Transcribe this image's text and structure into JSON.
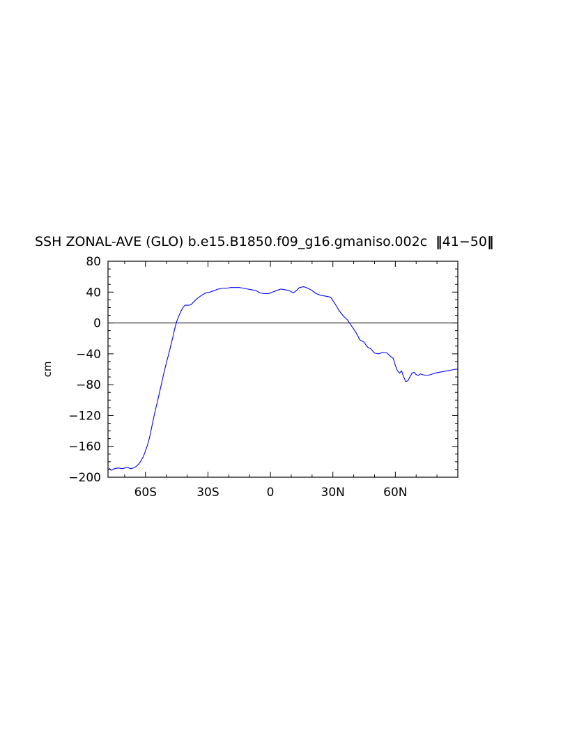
{
  "chart_data": {
    "type": "line",
    "title": "SSH ZONAL-AVE (GLO) b.e15.B1850.f09_g16.gmaniso.002c  41−50 ",
    "title_parts": {
      "main": "SSH ZONAL-AVE (GLO) b.e15.B1850.f09_g16.gmaniso.002c",
      "years": "41−50"
    },
    "xlabel": "",
    "ylabel": "cm",
    "xlim": [
      -78,
      90
    ],
    "ylim": [
      -200,
      80
    ],
    "x_ticks": [
      {
        "value": -60,
        "label": "60S"
      },
      {
        "value": -30,
        "label": "30S"
      },
      {
        "value": 0,
        "label": "0"
      },
      {
        "value": 30,
        "label": "30N"
      },
      {
        "value": 60,
        "label": "60N"
      }
    ],
    "y_ticks": [
      {
        "value": 80,
        "label": "80"
      },
      {
        "value": 40,
        "label": "40"
      },
      {
        "value": 0,
        "label": "0"
      },
      {
        "value": -40,
        "label": "−40"
      },
      {
        "value": -80,
        "label": "−80"
      },
      {
        "value": -120,
        "label": "−120"
      },
      {
        "value": -160,
        "label": "−160"
      },
      {
        "value": -200,
        "label": "−200"
      }
    ],
    "reference_line": 0,
    "line_color": "#0000ff",
    "series": [
      {
        "x": [
          -77.5,
          -76.5,
          -75,
          -73,
          -71,
          -69,
          -67,
          -66,
          -65,
          -64,
          -63,
          -62,
          -61,
          -60,
          -59,
          -58,
          -57,
          -56,
          -55,
          -54,
          -53,
          -52,
          -51,
          -50,
          -49,
          -48,
          -47,
          -46,
          -45,
          -44,
          -43,
          -42,
          -41,
          -40,
          -39,
          -38,
          -37,
          -35,
          -33,
          -31,
          -29,
          -27,
          -25,
          -23,
          -21,
          -19,
          -17,
          -15,
          -13,
          -11,
          -9,
          -7,
          -5,
          -3,
          -1,
          1,
          3,
          5,
          7,
          9,
          11,
          12.5,
          14,
          16,
          18,
          20,
          22,
          24,
          26,
          28,
          29,
          30,
          31,
          33,
          35,
          37,
          39,
          41,
          43,
          45,
          46,
          47,
          48,
          50,
          52,
          54,
          56,
          58,
          59,
          60,
          61,
          62,
          63,
          64,
          65,
          66,
          67,
          68,
          69,
          70,
          71,
          72,
          73,
          75,
          77,
          79,
          81,
          83,
          85,
          87,
          89
        ],
        "y": [
          -188,
          -191,
          -189,
          -188,
          -189,
          -187,
          -189,
          -188,
          -187,
          -185,
          -182,
          -178,
          -173,
          -166,
          -158,
          -148,
          -135,
          -122,
          -110,
          -99,
          -87,
          -75,
          -63,
          -52,
          -42,
          -31,
          -20,
          -8,
          2,
          9,
          15,
          20,
          23,
          23,
          23,
          24,
          27,
          32,
          36,
          39,
          40,
          42,
          44,
          45,
          45,
          46,
          46,
          46,
          45,
          44,
          43,
          42,
          39,
          38,
          38,
          40,
          42,
          44,
          43,
          42,
          39,
          42,
          46,
          47,
          45,
          42,
          38,
          36,
          35,
          34,
          33,
          29,
          25,
          16,
          9,
          4,
          -4,
          -12,
          -22,
          -25,
          -29,
          -32,
          -33,
          -39,
          -40,
          -38,
          -39,
          -44,
          -46,
          -55,
          -62,
          -65,
          -62,
          -70,
          -76,
          -75,
          -70,
          -65,
          -64,
          -67,
          -68,
          -66,
          -67,
          -68,
          -67,
          -65,
          -64,
          -63,
          -62,
          -61,
          -60
        ]
      }
    ]
  }
}
